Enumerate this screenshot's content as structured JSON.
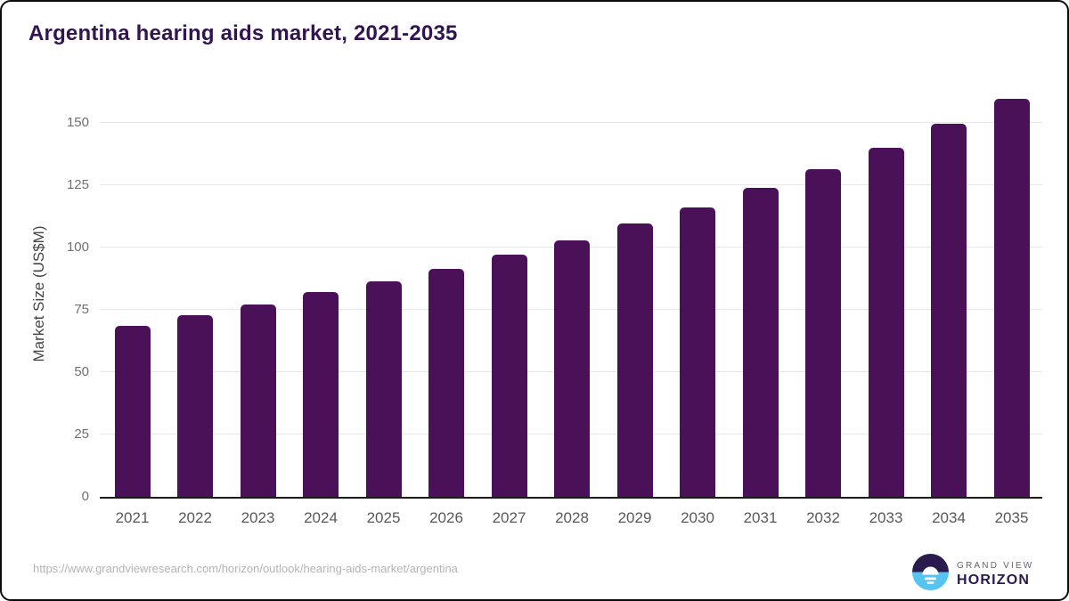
{
  "title": "Argentina hearing aids market, 2021-2035",
  "chart_data": {
    "type": "bar",
    "title": "Argentina hearing aids market, 2021-2035",
    "categories": [
      "2021",
      "2022",
      "2023",
      "2024",
      "2025",
      "2026",
      "2027",
      "2028",
      "2029",
      "2030",
      "2031",
      "2032",
      "2033",
      "2034",
      "2035"
    ],
    "values": [
      68.5,
      73,
      77,
      82,
      86.5,
      91.5,
      97,
      103,
      109.5,
      116,
      124,
      131.5,
      140,
      149.5,
      159.5
    ],
    "xlabel": "",
    "ylabel": "Market Size (US$M)",
    "ylim": [
      0,
      164
    ],
    "yticks": [
      0,
      25,
      50,
      75,
      100,
      125,
      150
    ],
    "grid": "horizontal-only",
    "legend": "none",
    "bar_color": "#4a1158"
  },
  "footer": {
    "source_url": "https://www.grandviewresearch.com/horizon/outlook/hearing-aids-market/argentina",
    "logo": {
      "top": "GRAND VIEW",
      "bottom": "HORIZON"
    }
  },
  "colors": {
    "bar": "#4a1158",
    "title": "#321450",
    "tick_text": "#6f6f6f",
    "xtick_text": "#595959",
    "axis_label": "#454545",
    "gridline": "#e7e7e7",
    "baseline": "#1a1a1a",
    "url_text": "#b4b4b4",
    "frame_border": "#0b0b0b",
    "logo_dark": "#2b1a4d",
    "logo_blue": "#56c4f1",
    "logo_gray": "#63636e"
  }
}
